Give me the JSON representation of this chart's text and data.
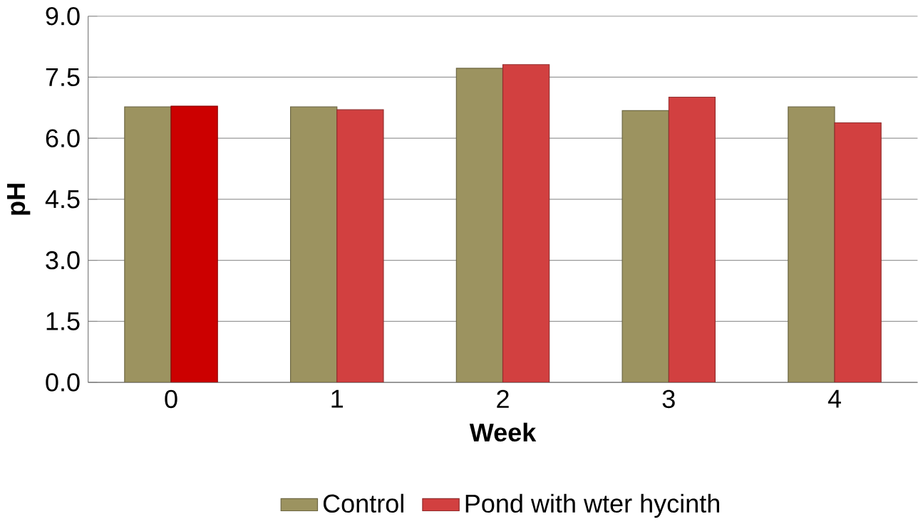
{
  "chart_data": {
    "type": "bar",
    "xlabel": "Week",
    "ylabel": "pH",
    "categories": [
      "0",
      "1",
      "2",
      "3",
      "4"
    ],
    "series": [
      {
        "name": "Control",
        "color": "#9c9360",
        "values": [
          6.77,
          6.77,
          7.72,
          6.68,
          6.77
        ]
      },
      {
        "name": "Pond with wter hycinth",
        "color": "#d24040",
        "colors": [
          "#cc0000",
          "#d24040",
          "#d24040",
          "#d24040",
          "#d24040"
        ],
        "values": [
          6.79,
          6.7,
          7.81,
          7.01,
          6.38
        ]
      }
    ],
    "ylim": [
      0,
      9
    ],
    "yticks": [
      {
        "value": 0,
        "label": "0.0"
      },
      {
        "value": 1.5,
        "label": "1.5"
      },
      {
        "value": 3,
        "label": "3.0"
      },
      {
        "value": 4.5,
        "label": "4.5"
      },
      {
        "value": 6,
        "label": "6.0"
      },
      {
        "value": 7.5,
        "label": "7.5"
      },
      {
        "value": 9,
        "label": "9.0"
      }
    ],
    "grid": "y",
    "legend": "bottom"
  }
}
